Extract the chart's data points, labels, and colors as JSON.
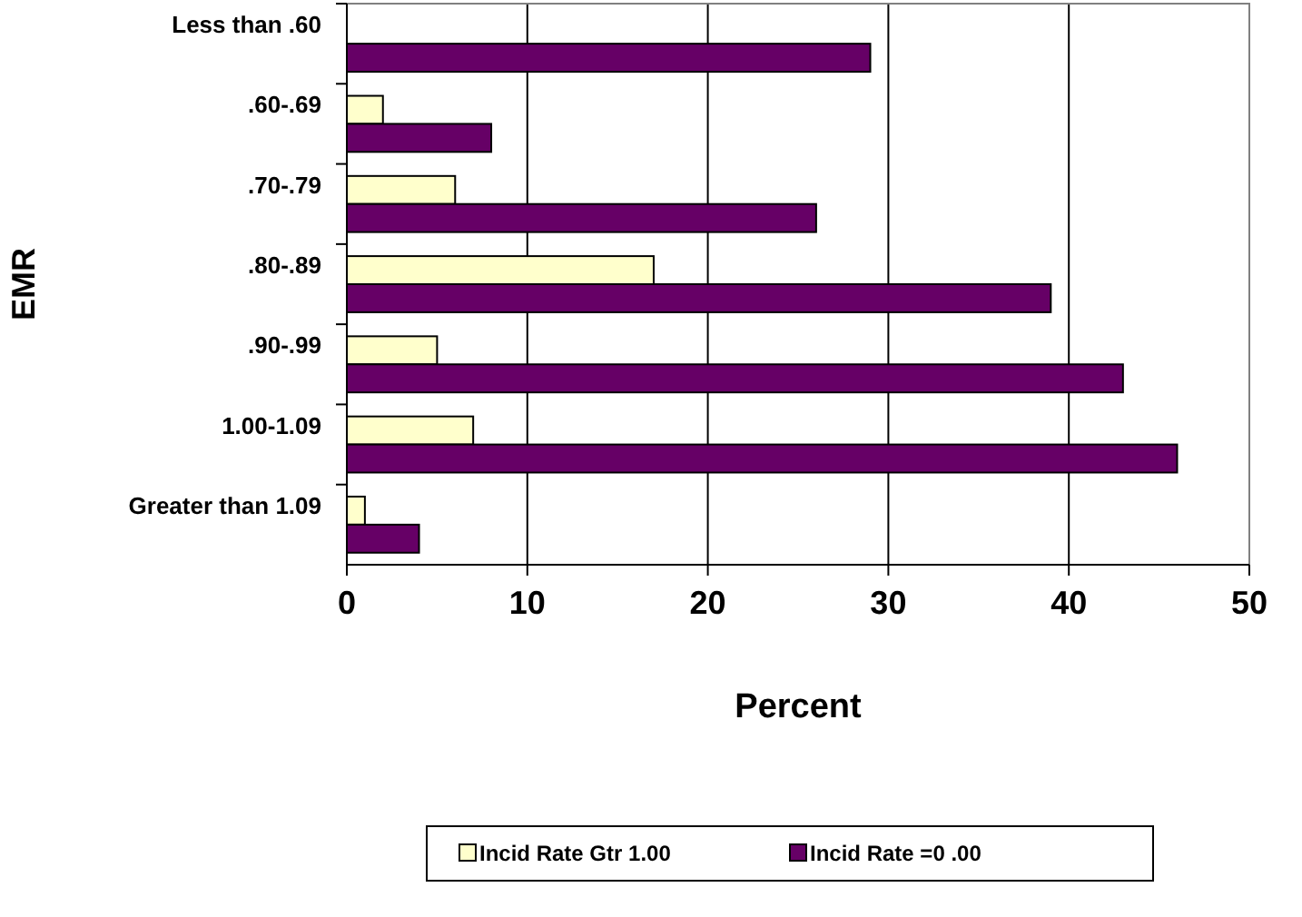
{
  "chart_data": {
    "type": "bar",
    "orientation": "horizontal",
    "xlabel": "Percent",
    "ylabel": "EMR",
    "categories": [
      "Less than .60",
      ".60-.69",
      ".70-.79",
      ".80-.89",
      ".90-.99",
      "1.00-1.09",
      "Greater than 1.09"
    ],
    "series": [
      {
        "name": "Incid Rate Gtr 1.00",
        "color": "#ffffcc",
        "values": [
          0,
          2,
          6,
          17,
          5,
          7,
          1
        ]
      },
      {
        "name": "Incid Rate =0 .00",
        "color": "#660066",
        "values": [
          29,
          8,
          26,
          39,
          43,
          46,
          4
        ]
      }
    ],
    "xlim": [
      0,
      50
    ],
    "xticks": [
      0,
      10,
      20,
      30,
      40,
      50
    ],
    "grid": "x",
    "legend": "bottom"
  }
}
